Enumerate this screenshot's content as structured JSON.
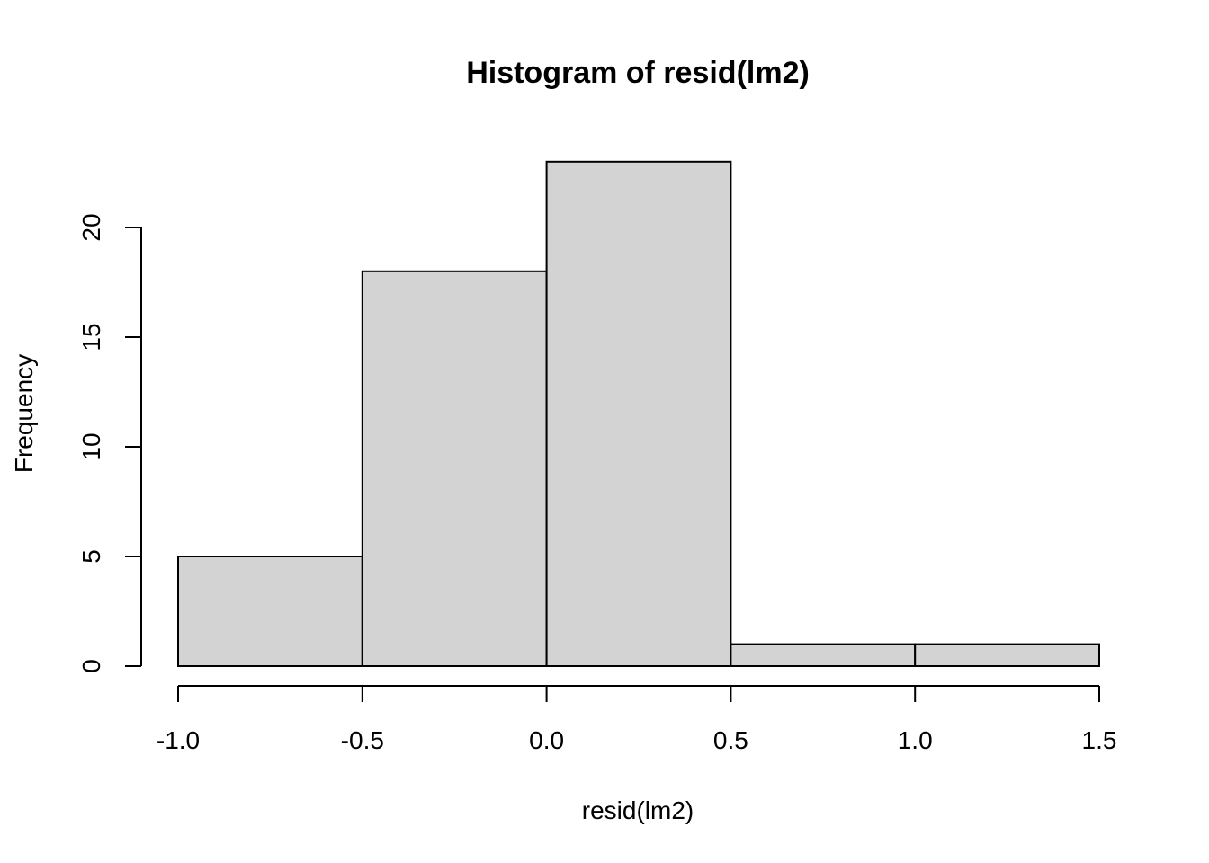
{
  "chart_data": {
    "type": "bar",
    "title": "Histogram of resid(lm2)",
    "xlabel": "resid(lm2)",
    "ylabel": "Frequency",
    "bins": [
      {
        "from": -1.0,
        "to": -0.5,
        "count": 5
      },
      {
        "from": -0.5,
        "to": 0.0,
        "count": 18
      },
      {
        "from": 0.0,
        "to": 0.5,
        "count": 23
      },
      {
        "from": 0.5,
        "to": 1.0,
        "count": 1
      },
      {
        "from": 1.0,
        "to": 1.5,
        "count": 1
      }
    ],
    "xlim": [
      -1.0,
      1.5
    ],
    "ylim": [
      0,
      23
    ],
    "x_ticks": [
      -1.0,
      -0.5,
      0.0,
      0.5,
      1.0,
      1.5
    ],
    "x_tick_labels": [
      "-1.0",
      "-0.5",
      "0.0",
      "0.5",
      "1.0",
      "1.5"
    ],
    "y_ticks": [
      0,
      5,
      10,
      15,
      20
    ],
    "y_tick_labels": [
      "0",
      "5",
      "10",
      "15",
      "20"
    ],
    "bar_fill": "#d3d3d3",
    "bar_stroke": "#000000",
    "grid": false,
    "legend": "none"
  }
}
